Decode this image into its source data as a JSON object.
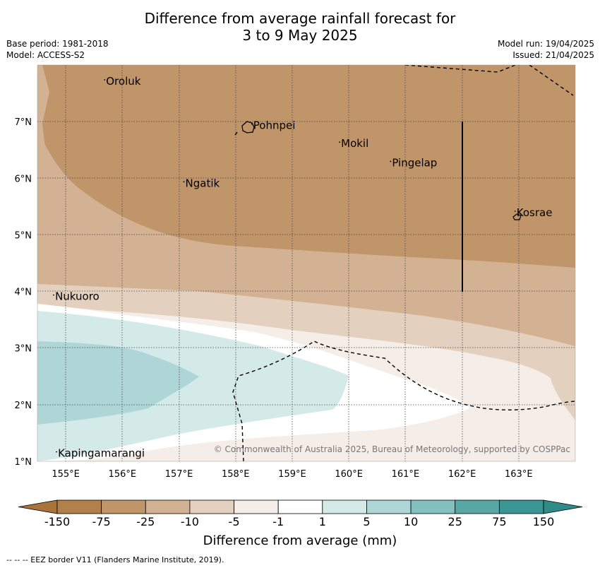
{
  "header": {
    "title_line1": "Difference from average rainfall forecast for",
    "title_line2": "3 to 9 May 2025",
    "base_period": "Base period: 1981-2018",
    "model": "Model: ACCESS-S2",
    "model_run": "Model run: 19/04/2025",
    "issued": "Issued: 21/04/2025"
  },
  "map": {
    "lon_range": [
      154.5,
      164.0
    ],
    "lat_range": [
      1.0,
      8.0
    ],
    "lon_ticks": [
      "155°E",
      "156°E",
      "157°E",
      "158°E",
      "159°E",
      "160°E",
      "161°E",
      "162°E",
      "163°E"
    ],
    "lat_ticks": [
      "1°N",
      "2°N",
      "3°N",
      "4°N",
      "5°N",
      "6°N",
      "7°N"
    ],
    "grid": true,
    "places": [
      {
        "name": "Oroluk",
        "lon": 155.7,
        "lat": 7.65
      },
      {
        "name": "Pohnpei",
        "lon": 158.3,
        "lat": 6.87
      },
      {
        "name": "Mokil",
        "lon": 159.85,
        "lat": 6.55
      },
      {
        "name": "Pingelap",
        "lon": 160.75,
        "lat": 6.21
      },
      {
        "name": "Ngatik",
        "lon": 157.1,
        "lat": 5.85
      },
      {
        "name": "Kosrae",
        "lon": 162.95,
        "lat": 5.33
      },
      {
        "name": "Nukuoro",
        "lon": 154.8,
        "lat": 3.85
      },
      {
        "name": "Kapingamarangi",
        "lon": 154.85,
        "lat": 1.08
      }
    ],
    "copyright": "© Commonwealth of Australia 2025, Bureau of Meteorology, supported by COSPPac"
  },
  "colorbar": {
    "labels": [
      "-150",
      "-75",
      "-25",
      "-10",
      "-5",
      "-1",
      "1",
      "5",
      "10",
      "25",
      "75",
      "150"
    ],
    "colors": [
      "#a9733c",
      "#b2804b",
      "#bf9569",
      "#d3b294",
      "#e4d0bf",
      "#f5ede8",
      "#ffffff",
      "#d4eae9",
      "#aed6d6",
      "#82c1c0",
      "#57a7a5",
      "#3a9695",
      "#2f8b88"
    ],
    "title": "Difference from average (mm)"
  },
  "footnote": "--  --  -- EEZ border V11 (Flanders Marine Institute, 2019)."
}
